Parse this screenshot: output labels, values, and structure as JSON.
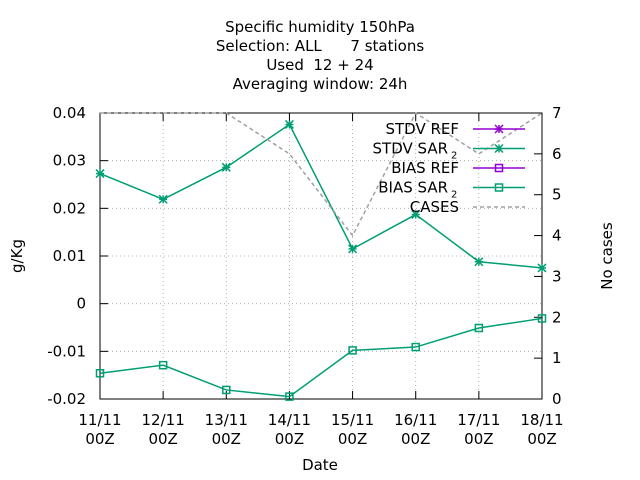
{
  "chart_data": {
    "type": "line",
    "title_lines": [
      "Specific humidity 150hPa",
      "Selection: ALL      7 stations",
      "Used  12 + 24",
      "Averaging window: 24h"
    ],
    "xlabel": "Date",
    "ylabel": "g/Kg",
    "y2label": "No cases",
    "categories": [
      "11/11 00Z",
      "12/11 00Z",
      "13/11 00Z",
      "14/11 00Z",
      "15/11 00Z",
      "16/11 00Z",
      "17/11 00Z",
      "18/11 00Z"
    ],
    "x_tick_lines": [
      [
        "11/11",
        "00Z"
      ],
      [
        "12/11",
        "00Z"
      ],
      [
        "13/11",
        "00Z"
      ],
      [
        "14/11",
        "00Z"
      ],
      [
        "15/11",
        "00Z"
      ],
      [
        "16/11",
        "00Z"
      ],
      [
        "17/11",
        "00Z"
      ],
      [
        "18/11",
        "00Z"
      ]
    ],
    "ylim": [
      -0.02,
      0.04
    ],
    "y_ticks": [
      -0.02,
      -0.01,
      0,
      0.01,
      0.02,
      0.03,
      0.04
    ],
    "y_tick_labels": [
      "-0.02",
      "-0.01",
      "0",
      "0.01",
      "0.02",
      "0.03",
      "0.04"
    ],
    "y2lim": [
      0,
      7
    ],
    "y2_ticks": [
      0,
      1,
      2,
      3,
      4,
      5,
      6,
      7
    ],
    "y2_tick_labels": [
      "0",
      "1",
      "2",
      "3",
      "4",
      "5",
      "6",
      "7"
    ],
    "legend_position": "top-right",
    "series": [
      {
        "name": "STDV REF",
        "subscript": "",
        "axis": "y",
        "color": "#9400d3",
        "marker": "star",
        "dash": false,
        "values": [
          null,
          null,
          null,
          null,
          null,
          null,
          null,
          null
        ]
      },
      {
        "name": "STDV SAR",
        "subscript": "2",
        "axis": "y",
        "color": "#009e73",
        "marker": "star",
        "dash": false,
        "values": [
          0.0273,
          0.0219,
          0.0286,
          0.0376,
          0.0115,
          0.0187,
          0.0088,
          0.0075
        ]
      },
      {
        "name": "BIAS REF",
        "subscript": "",
        "axis": "y",
        "color": "#9400d3",
        "marker": "square",
        "dash": false,
        "values": [
          null,
          null,
          null,
          null,
          null,
          null,
          null,
          null
        ]
      },
      {
        "name": "BIAS SAR",
        "subscript": "2",
        "axis": "y",
        "color": "#009e73",
        "marker": "square",
        "dash": false,
        "values": [
          -0.0146,
          -0.0129,
          -0.0181,
          -0.0195,
          -0.0098,
          -0.0091,
          -0.0051,
          -0.0031
        ]
      },
      {
        "name": "CASES",
        "subscript": "",
        "axis": "y2",
        "color": "#a0a0a0",
        "marker": "none",
        "dash": true,
        "values": [
          7,
          7,
          7,
          6,
          4,
          7,
          6,
          7
        ]
      }
    ]
  }
}
